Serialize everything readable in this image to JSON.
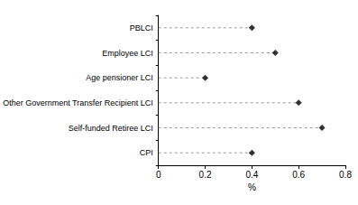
{
  "chart_data": {
    "type": "dot",
    "orientation": "horizontal",
    "categories": [
      "PBLCI",
      "Employee LCI",
      "Age pensioner LCI",
      "Other Government Transfer Recipient LCI",
      "Self-funded Retiree LCI",
      "CPI"
    ],
    "values": [
      0.4,
      0.5,
      0.2,
      0.6,
      0.7,
      0.4
    ],
    "x_label": "%",
    "xlim": [
      0,
      0.8
    ],
    "xticks": [
      0,
      0.2,
      0.4,
      0.6,
      0.8
    ],
    "color": "#000000",
    "marker": "diamond",
    "line_style": "dashed",
    "grid": false
  }
}
